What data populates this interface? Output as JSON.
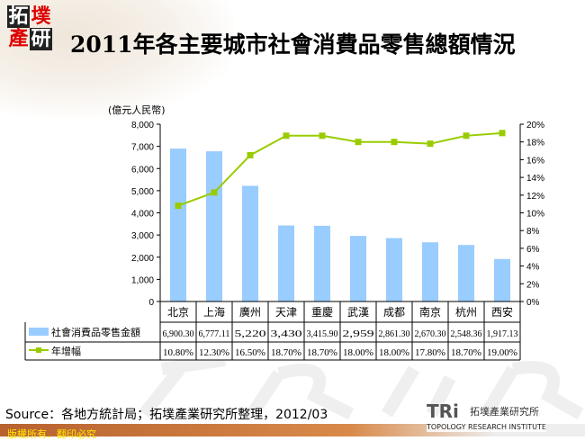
{
  "logo": {
    "chars": [
      "拓",
      "墣",
      "產",
      "研"
    ]
  },
  "title": "2011年各主要城市社會消費品零售總額情況",
  "unit_label": "(億元人民幣)",
  "chart_data": {
    "type": "bar+line",
    "title": "2011年各主要城市社會消費品零售總額情況",
    "categories": [
      "北京",
      "上海",
      "廣州",
      "天津",
      "重慶",
      "武漢",
      "成都",
      "南京",
      "杭州",
      "西安"
    ],
    "series": [
      {
        "name": "社會消費品零售金額",
        "type": "bar",
        "axis": "left",
        "color": "#99ccff",
        "values": [
          6900.3,
          6777.11,
          5220,
          3430,
          3415.9,
          2959,
          2861.3,
          2670.3,
          2548.36,
          1917.13
        ],
        "labels": [
          "6,900.30",
          "6,777.11",
          "5,220",
          "3,430",
          "3,415.90",
          "2,959",
          "2,861.30",
          "2,670.30",
          "2,548.36",
          "1,917.13"
        ]
      },
      {
        "name": "年增幅",
        "type": "line",
        "axis": "right",
        "color": "#99cc00",
        "values": [
          10.8,
          12.3,
          16.5,
          18.7,
          18.7,
          18.0,
          18.0,
          17.8,
          18.7,
          19.0
        ],
        "labels": [
          "10.80%",
          "12.30%",
          "16.50%",
          "18.70%",
          "18.70%",
          "18.00%",
          "18.00%",
          "17.80%",
          "18.70%",
          "19.00%"
        ]
      }
    ],
    "ylim_left": [
      0,
      8000
    ],
    "ylim_right": [
      0,
      20
    ],
    "left_ticks": [
      "0",
      "1,000",
      "2,000",
      "3,000",
      "4,000",
      "5,000",
      "6,000",
      "7,000",
      "8,000"
    ],
    "right_ticks": [
      "0%",
      "2%",
      "4%",
      "6%",
      "8%",
      "10%",
      "12%",
      "14%",
      "16%",
      "18%",
      "20%"
    ],
    "ylabel_left": "(億元人民幣)",
    "legend": "data-table"
  },
  "source": "Source：各地方統計局；拓墣產業研究所整理，2012/03",
  "footer": "版權所有．翻印必究",
  "brand": {
    "tri": "TRi",
    "name": "拓墣產業研究所",
    "english": "TOPOLOGY RESEARCH INSTITUTE"
  }
}
